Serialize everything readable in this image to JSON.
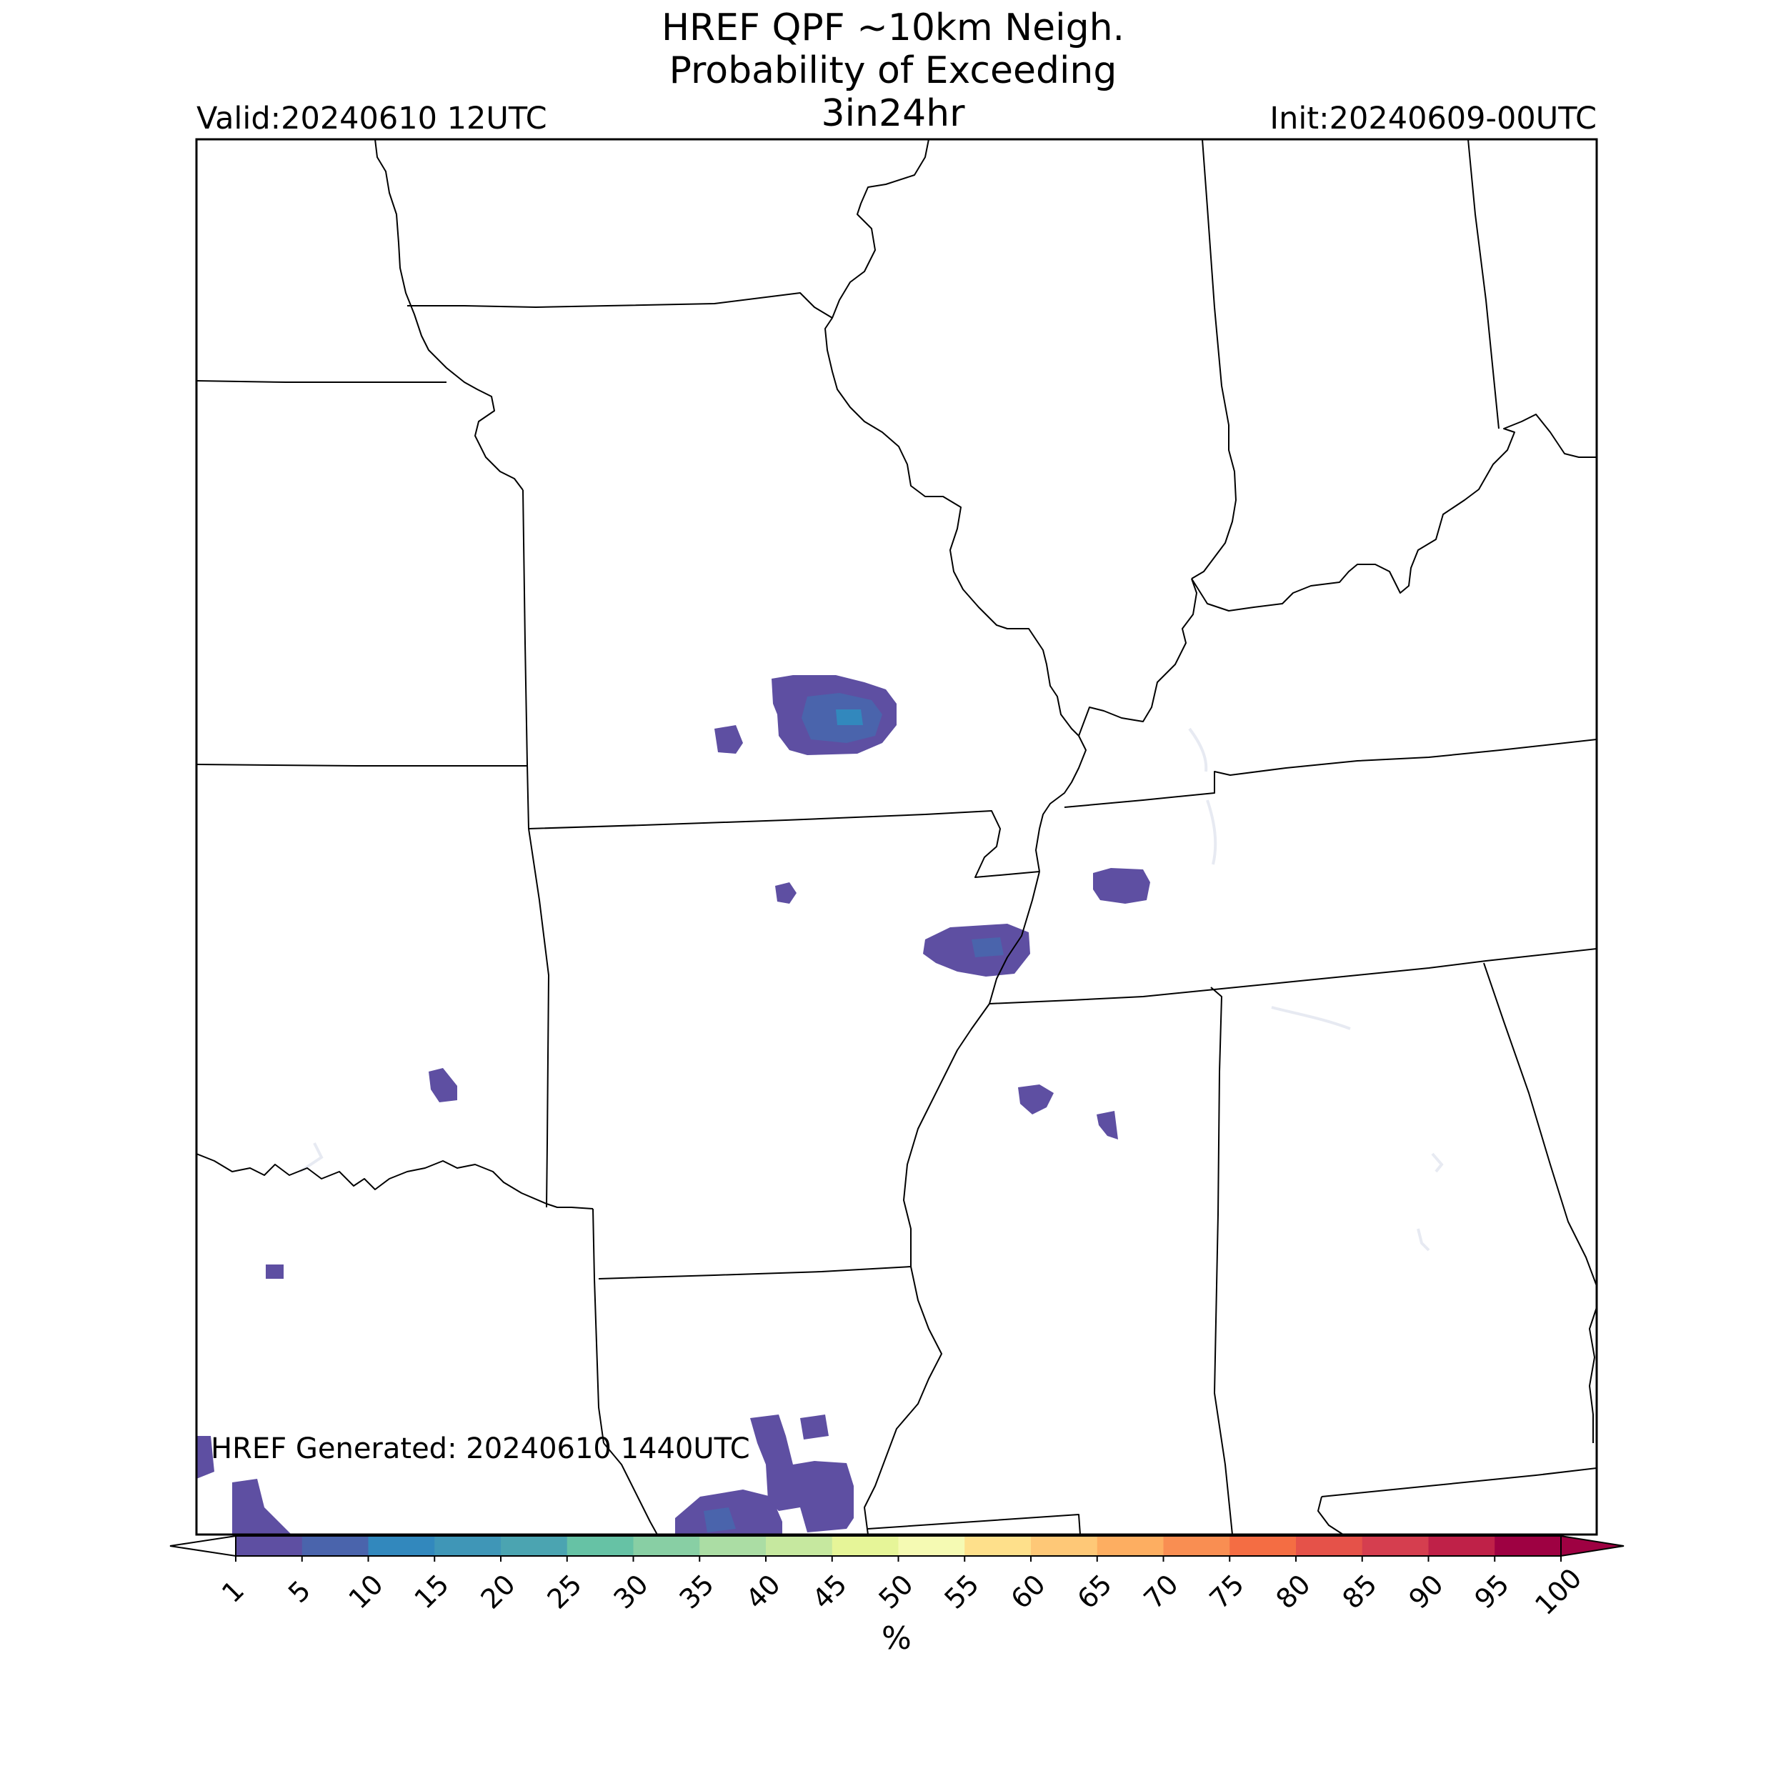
{
  "title": {
    "line1": "HREF QPF ~10km Neigh.",
    "line2": "Probability of Exceeding",
    "line3": "3in24hr"
  },
  "valid_label": "Valid:20240610 12UTC",
  "init_label": "Init:20240609-00UTC",
  "generated_label": "HREF Generated: 20240610 1440UTC",
  "colorbar": {
    "units": "%",
    "ticks": [
      "1",
      "5",
      "10",
      "15",
      "20",
      "25",
      "30",
      "35",
      "40",
      "45",
      "50",
      "55",
      "60",
      "65",
      "70",
      "75",
      "80",
      "85",
      "90",
      "95",
      "100"
    ],
    "colors": [
      "#5e4fa2",
      "#4a64ac",
      "#3288bd",
      "#3f96b7",
      "#4ba4b1",
      "#66c2a5",
      "#88cfa4",
      "#abdda4",
      "#c6e89f",
      "#e6f598",
      "#f5fab3",
      "#fee08b",
      "#fec877",
      "#fdae61",
      "#f98e52",
      "#f46d43",
      "#e55249",
      "#d53e4f",
      "#bf2148",
      "#9e0142"
    ]
  }
}
